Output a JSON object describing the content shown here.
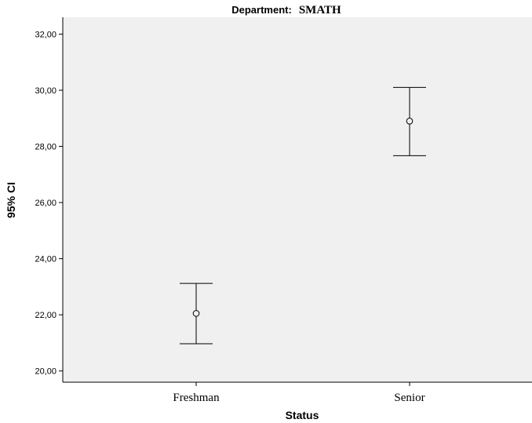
{
  "chart_data": {
    "type": "errorbar",
    "title_prefix": "Department:",
    "title_value": "SMATH",
    "xlabel": "Status",
    "ylabel": "95% CI",
    "categories": [
      "Freshman",
      "Senior"
    ],
    "means": [
      22.05,
      28.9
    ],
    "ci_lower": [
      20.97,
      27.67
    ],
    "ci_upper": [
      23.12,
      30.1
    ],
    "ylim": [
      19.6,
      32.6
    ],
    "yticks": [
      20,
      22,
      24,
      26,
      28,
      30,
      32
    ],
    "ytick_labels": [
      "20,00",
      "22,00",
      "24,00",
      "26,00",
      "28,00",
      "30,00",
      "32,00"
    ],
    "grid": false,
    "plot_background": "#f0f0f0",
    "marker": "open-circle",
    "line_color": "#000000"
  }
}
